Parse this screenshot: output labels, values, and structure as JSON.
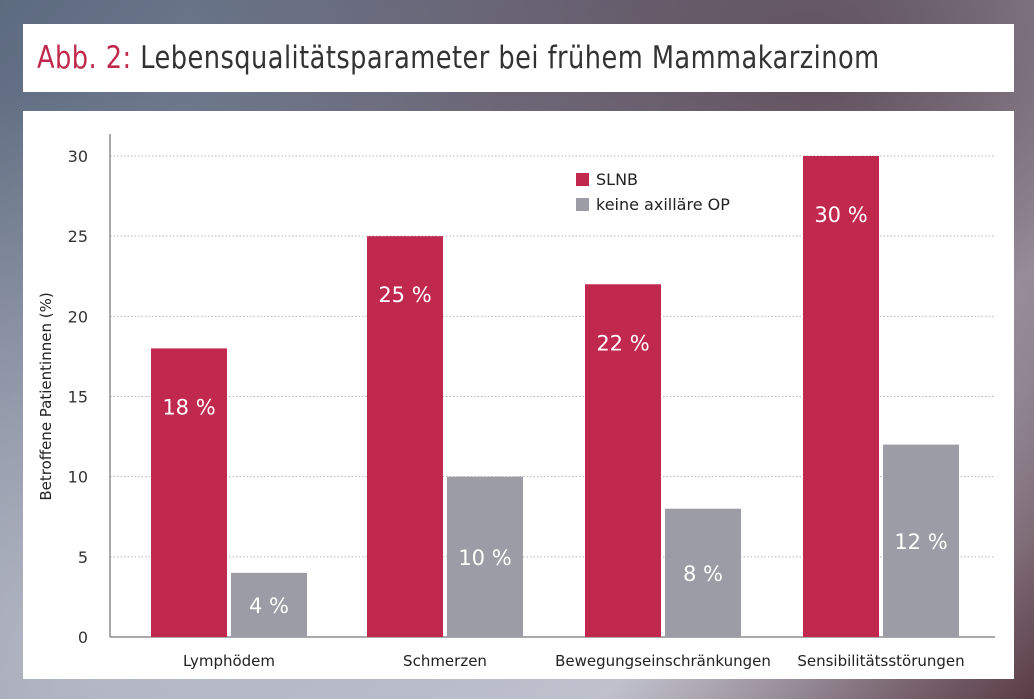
{
  "title": {
    "prefix": "Abb. 2:",
    "main": "Lebensqualitätsparameter bei frühem Mammakarzinom"
  },
  "colors": {
    "slnb": "#c0294d",
    "none": "#9c9ca6",
    "title_prefix": "#c0294d"
  },
  "chart_data": {
    "type": "bar",
    "title": "Lebensqualitätsparameter bei frühem Mammakarzinom",
    "xlabel": "",
    "ylabel": "Betroffene Patientinnen (%)",
    "ylim": [
      0,
      30
    ],
    "yticks": [
      0,
      5,
      10,
      15,
      20,
      25,
      30
    ],
    "grid": true,
    "legend_position": "top-center",
    "categories": [
      "Lymphödem",
      "Schmerzen",
      "Bewegungseinschränkungen",
      "Sensibilitätsstörungen"
    ],
    "series": [
      {
        "name": "SLNB",
        "color": "#c0294d",
        "values": [
          18,
          25,
          22,
          30
        ],
        "labels": [
          "18 %",
          "25 %",
          "22 %",
          "30 %"
        ]
      },
      {
        "name": "keine axilläre OP",
        "color": "#9c9ca6",
        "values": [
          4,
          10,
          8,
          12
        ],
        "labels": [
          "4 %",
          "10 %",
          "8 %",
          "12 %"
        ]
      }
    ]
  }
}
